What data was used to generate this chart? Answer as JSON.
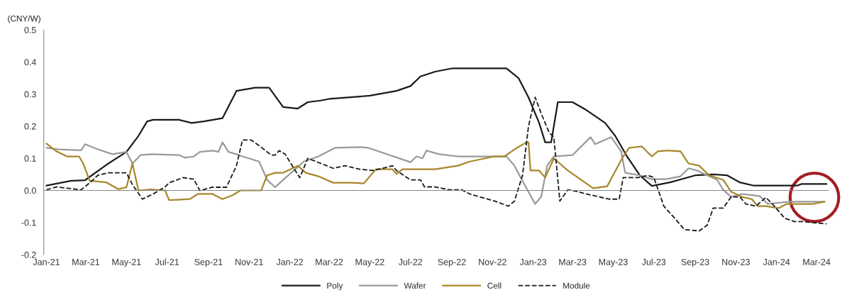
{
  "chart_data": {
    "type": "line",
    "ylabel": "(CNY/W)",
    "xlim": [
      "2020-12-28",
      "2024-03-19"
    ],
    "xticks": [
      {
        "value": "2021-01-01",
        "label": "Jan-21"
      },
      {
        "value": "2021-03-01",
        "label": "Mar-21"
      },
      {
        "value": "2021-05-01",
        "label": "May-21"
      },
      {
        "value": "2021-07-01",
        "label": "Jul-21"
      },
      {
        "value": "2021-09-01",
        "label": "Sep-21"
      },
      {
        "value": "2021-11-01",
        "label": "Nov-21"
      },
      {
        "value": "2022-01-01",
        "label": "Jan-22"
      },
      {
        "value": "2022-03-01",
        "label": "Mar-22"
      },
      {
        "value": "2022-05-01",
        "label": "May-22"
      },
      {
        "value": "2022-07-01",
        "label": "Jul-22"
      },
      {
        "value": "2022-09-01",
        "label": "Sep-22"
      },
      {
        "value": "2022-11-01",
        "label": "Nov-22"
      },
      {
        "value": "2023-01-01",
        "label": "Jan-23"
      },
      {
        "value": "2023-03-01",
        "label": "Mar-23"
      },
      {
        "value": "2023-05-01",
        "label": "May-23"
      },
      {
        "value": "2023-07-01",
        "label": "Jul-23"
      },
      {
        "value": "2023-09-01",
        "label": "Sep-23"
      },
      {
        "value": "2023-11-01",
        "label": "Nov-23"
      },
      {
        "value": "2024-01-01",
        "label": "Jan-24"
      },
      {
        "value": "2024-03-01",
        "label": "Mar-24"
      }
    ],
    "ylim": [
      -0.2,
      0.5
    ],
    "yticks": [
      -0.2,
      -0.1,
      {
        "value": 0,
        "label": "0.0"
      },
      0.1,
      0.2,
      0.3,
      0.4,
      0.5
    ],
    "grid": false,
    "legend": "bottom",
    "ref_lines": [
      {
        "axis": "y",
        "value": 0,
        "color": "#888888"
      }
    ],
    "series": [
      {
        "name": "Poly",
        "color": "#1a1a1a",
        "line_style": "solid",
        "x": [
          "2021-01-01",
          "2021-02-07",
          "2021-02-28",
          "2021-04-01",
          "2021-05-01",
          "2021-05-19",
          "2021-06-01",
          "2021-06-10",
          "2021-07-19",
          "2021-08-07",
          "2021-08-25",
          "2021-09-22",
          "2021-10-13",
          "2021-11-10",
          "2021-12-01",
          "2021-12-22",
          "2022-01-13",
          "2022-01-28",
          "2022-02-16",
          "2022-03-01",
          "2022-05-01",
          "2022-06-10",
          "2022-07-01",
          "2022-07-16",
          "2022-08-07",
          "2022-09-01",
          "2022-11-22",
          "2022-12-10",
          "2022-12-25",
          "2023-01-10",
          "2023-01-19",
          "2023-01-28",
          "2023-02-07",
          "2023-03-01",
          "2023-03-22",
          "2023-04-19",
          "2023-05-04",
          "2023-05-22",
          "2023-06-10",
          "2023-06-28",
          "2023-07-25",
          "2023-09-01",
          "2023-09-28",
          "2023-10-19",
          "2023-11-07",
          "2023-11-28",
          "2024-02-01",
          "2024-02-07",
          "2024-03-16"
        ],
        "values": [
          0.015,
          0.03,
          0.032,
          0.08,
          0.12,
          0.17,
          0.215,
          0.22,
          0.22,
          0.21,
          0.215,
          0.225,
          0.31,
          0.32,
          0.32,
          0.26,
          0.255,
          0.275,
          0.28,
          0.285,
          0.295,
          0.31,
          0.325,
          0.355,
          0.37,
          0.38,
          0.38,
          0.35,
          0.29,
          0.21,
          0.15,
          0.15,
          0.275,
          0.275,
          0.25,
          0.21,
          0.17,
          0.105,
          0.047,
          0.014,
          0.025,
          0.047,
          0.05,
          0.047,
          0.025,
          0.015,
          0.015,
          0.02,
          0.02
        ]
      },
      {
        "name": "Wafer",
        "color": "#9a9a9a",
        "line_style": "solid",
        "x": [
          "2021-01-01",
          "2021-01-19",
          "2021-02-22",
          "2021-02-28",
          "2021-03-07",
          "2021-03-19",
          "2021-04-10",
          "2021-05-01",
          "2021-05-10",
          "2021-05-22",
          "2021-06-07",
          "2021-07-19",
          "2021-07-28",
          "2021-08-10",
          "2021-08-19",
          "2021-09-07",
          "2021-09-16",
          "2021-09-22",
          "2021-10-01",
          "2021-10-13",
          "2021-10-22",
          "2021-11-16",
          "2021-11-28",
          "2021-12-10",
          "2021-12-22",
          "2022-01-07",
          "2022-01-22",
          "2022-02-13",
          "2022-03-10",
          "2022-04-16",
          "2022-04-28",
          "2022-07-01",
          "2022-07-10",
          "2022-07-19",
          "2022-07-25",
          "2022-08-13",
          "2022-09-10",
          "2022-11-22",
          "2022-12-04",
          "2022-12-19",
          "2023-01-04",
          "2023-01-13",
          "2023-01-22",
          "2023-02-01",
          "2023-03-01",
          "2023-03-28",
          "2023-04-04",
          "2023-04-28",
          "2023-05-13",
          "2023-05-19",
          "2023-06-10",
          "2023-06-28",
          "2023-07-19",
          "2023-08-10",
          "2023-08-22",
          "2023-09-04",
          "2023-09-19",
          "2023-10-04",
          "2023-10-13",
          "2023-10-25",
          "2023-11-10",
          "2023-11-28",
          "2023-12-07",
          "2023-12-19",
          "2024-01-19",
          "2024-03-13"
        ],
        "values": [
          0.133,
          0.128,
          0.125,
          0.144,
          0.138,
          0.128,
          0.113,
          0.12,
          0.084,
          0.11,
          0.113,
          0.11,
          0.102,
          0.106,
          0.12,
          0.124,
          0.12,
          0.15,
          0.12,
          0.113,
          0.106,
          0.09,
          0.033,
          0.01,
          0.033,
          0.062,
          0.09,
          0.106,
          0.133,
          0.135,
          0.133,
          0.088,
          0.106,
          0.1,
          0.124,
          0.113,
          0.106,
          0.106,
          0.077,
          0.018,
          -0.042,
          -0.02,
          0.077,
          0.106,
          0.11,
          0.166,
          0.144,
          0.166,
          0.122,
          0.055,
          0.047,
          0.035,
          0.035,
          0.044,
          0.069,
          0.062,
          0.047,
          0.033,
          0.002,
          -0.02,
          -0.011,
          -0.015,
          -0.018,
          -0.042,
          -0.035,
          -0.035
        ]
      },
      {
        "name": "Cell",
        "color": "#a8862a",
        "line_style": "solid",
        "x": [
          "2021-01-01",
          "2021-01-16",
          "2021-02-01",
          "2021-02-19",
          "2021-02-25",
          "2021-03-07",
          "2021-04-01",
          "2021-04-19",
          "2021-05-01",
          "2021-05-10",
          "2021-05-19",
          "2021-06-07",
          "2021-06-28",
          "2021-07-04",
          "2021-08-04",
          "2021-08-16",
          "2021-09-07",
          "2021-09-22",
          "2021-10-07",
          "2021-10-19",
          "2021-11-19",
          "2021-11-28",
          "2021-12-10",
          "2021-12-22",
          "2022-01-13",
          "2022-01-25",
          "2022-02-13",
          "2022-03-07",
          "2022-04-04",
          "2022-04-22",
          "2022-05-10",
          "2022-06-04",
          "2022-06-10",
          "2022-06-19",
          "2022-07-01",
          "2022-08-07",
          "2022-09-10",
          "2022-09-28",
          "2022-11-04",
          "2022-11-19",
          "2022-12-04",
          "2022-12-22",
          "2022-12-25",
          "2022-12-28",
          "2023-01-10",
          "2023-01-19",
          "2023-02-01",
          "2023-02-22",
          "2023-04-01",
          "2023-04-22",
          "2023-05-16",
          "2023-05-25",
          "2023-06-13",
          "2023-06-28",
          "2023-07-07",
          "2023-07-19",
          "2023-07-25",
          "2023-08-10",
          "2023-08-22",
          "2023-09-07",
          "2023-09-22",
          "2023-10-13",
          "2023-10-25",
          "2023-11-10",
          "2023-11-25",
          "2023-12-04",
          "2023-12-16",
          "2024-01-04",
          "2024-01-16",
          "2024-02-25",
          "2024-03-13"
        ],
        "values": [
          0.146,
          0.122,
          0.106,
          0.106,
          0.084,
          0.03,
          0.025,
          0.004,
          0.01,
          0.084,
          0.0,
          0.003,
          0.0,
          -0.03,
          -0.027,
          -0.011,
          -0.011,
          -0.027,
          -0.015,
          0.0,
          0.0,
          0.047,
          0.055,
          0.055,
          0.077,
          0.055,
          0.044,
          0.024,
          0.024,
          0.022,
          0.066,
          0.066,
          0.051,
          0.066,
          0.066,
          0.066,
          0.077,
          0.09,
          0.106,
          0.106,
          0.128,
          0.15,
          0.15,
          0.062,
          0.062,
          0.04,
          0.1,
          0.062,
          0.007,
          0.013,
          0.106,
          0.133,
          0.137,
          0.106,
          0.122,
          0.124,
          0.124,
          0.122,
          0.084,
          0.077,
          0.047,
          0.033,
          -0.004,
          -0.02,
          -0.027,
          -0.049,
          -0.049,
          -0.055,
          -0.042,
          -0.042,
          -0.035
        ]
      },
      {
        "name": "Module",
        "color": "#1a1a1a",
        "line_style": "dashed",
        "x": [
          "2021-01-01",
          "2021-01-16",
          "2021-02-22",
          "2021-03-07",
          "2021-03-19",
          "2021-04-04",
          "2021-05-01",
          "2021-05-10",
          "2021-05-25",
          "2021-06-10",
          "2021-06-28",
          "2021-07-04",
          "2021-07-25",
          "2021-08-10",
          "2021-08-19",
          "2021-09-07",
          "2021-09-28",
          "2021-10-13",
          "2021-10-22",
          "2021-11-04",
          "2021-11-19",
          "2021-12-04",
          "2021-12-10",
          "2021-12-16",
          "2021-12-25",
          "2022-01-07",
          "2022-01-16",
          "2022-01-28",
          "2022-03-07",
          "2022-03-25",
          "2022-04-16",
          "2022-05-07",
          "2022-06-04",
          "2022-06-10",
          "2022-07-01",
          "2022-07-16",
          "2022-07-22",
          "2022-08-07",
          "2022-08-28",
          "2022-09-16",
          "2022-09-28",
          "2022-11-04",
          "2022-11-25",
          "2022-12-04",
          "2022-12-16",
          "2022-12-25",
          "2023-01-04",
          "2023-01-13",
          "2023-01-25",
          "2023-02-01",
          "2023-02-07",
          "2023-02-10",
          "2023-02-22",
          "2023-03-01",
          "2023-03-22",
          "2023-04-25",
          "2023-05-10",
          "2023-05-16",
          "2023-06-07",
          "2023-06-22",
          "2023-07-01",
          "2023-07-16",
          "2023-08-01",
          "2023-08-16",
          "2023-09-07",
          "2023-09-19",
          "2023-09-28",
          "2023-10-13",
          "2023-10-25",
          "2023-11-07",
          "2023-11-16",
          "2023-12-01",
          "2023-12-16",
          "2023-12-25",
          "2024-01-13",
          "2024-01-28",
          "2024-02-10",
          "2024-02-25",
          "2024-03-16"
        ],
        "values": [
          0.002,
          0.011,
          0.002,
          0.024,
          0.047,
          0.055,
          0.055,
          0.018,
          -0.027,
          -0.011,
          0.011,
          0.024,
          0.04,
          0.035,
          0.0,
          0.01,
          0.01,
          0.077,
          0.157,
          0.157,
          0.135,
          0.11,
          0.11,
          0.124,
          0.113,
          0.069,
          0.04,
          0.1,
          0.069,
          0.077,
          0.066,
          0.062,
          0.077,
          0.062,
          0.033,
          0.033,
          0.011,
          0.011,
          0.002,
          0.002,
          -0.011,
          -0.033,
          -0.049,
          -0.033,
          0.047,
          0.2,
          0.29,
          0.24,
          0.18,
          0.166,
          0.033,
          -0.033,
          0.002,
          0.0,
          -0.011,
          -0.027,
          -0.027,
          0.04,
          0.04,
          0.047,
          0.04,
          -0.049,
          -0.086,
          -0.122,
          -0.126,
          -0.108,
          -0.055,
          -0.055,
          -0.02,
          -0.02,
          -0.042,
          -0.049,
          -0.022,
          -0.04,
          -0.086,
          -0.097,
          -0.097,
          -0.1,
          -0.104
        ]
      }
    ]
  }
}
